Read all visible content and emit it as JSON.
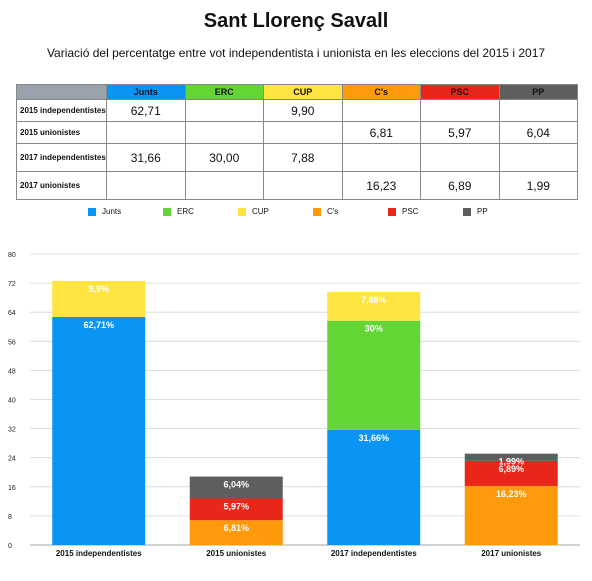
{
  "title": "Sant Llorenç Savall",
  "subtitle": "Variació del percentatge entre vot independentista i unionista en les eleccions del 2015 i 2017",
  "colors": {
    "Junts": "#0a95f5",
    "ERC": "#63d636",
    "CUP": "#fde441",
    "C's": "#fd9a0c",
    "PSC": "#e8261a",
    "PP": "#5e5e5e",
    "header_bg": "#9aa2ad"
  },
  "table": {
    "columns": [
      "Junts",
      "ERC",
      "CUP",
      "C's",
      "PSC",
      "PP"
    ],
    "rows": [
      {
        "label": "2015 independentistes",
        "cells": [
          "62,71",
          "",
          "9,90",
          "",
          "",
          ""
        ]
      },
      {
        "label": "2015 unionistes",
        "cells": [
          "",
          "",
          "",
          "6,81",
          "5,97",
          "6,04"
        ]
      },
      {
        "label": "2017 independentistes",
        "cells": [
          "31,66",
          "30,00",
          "7,88",
          "",
          "",
          ""
        ]
      },
      {
        "label": "2017 unionistes",
        "cells": [
          "",
          "",
          "",
          "16,23",
          "6,89",
          "1,99"
        ]
      }
    ]
  },
  "chart_data": {
    "type": "bar",
    "stacked": true,
    "categories": [
      "2015 independentistes",
      "2015 unionistes",
      "2017 independentistes",
      "2017 unionistes"
    ],
    "series": [
      {
        "name": "Junts",
        "values": [
          62.71,
          0,
          31.66,
          0
        ],
        "labels": [
          "62,71%",
          "",
          "31,66%",
          ""
        ]
      },
      {
        "name": "ERC",
        "values": [
          0,
          0,
          30.0,
          0
        ],
        "labels": [
          "",
          "",
          "30%",
          ""
        ]
      },
      {
        "name": "CUP",
        "values": [
          9.9,
          0,
          7.88,
          0
        ],
        "labels": [
          "9,9%",
          "",
          "7,88%",
          ""
        ]
      },
      {
        "name": "C's",
        "values": [
          0,
          6.81,
          0,
          16.23
        ],
        "labels": [
          "",
          "6,81%",
          "",
          "16,23%"
        ]
      },
      {
        "name": "PSC",
        "values": [
          0,
          5.97,
          0,
          6.89
        ],
        "labels": [
          "",
          "5,97%",
          "",
          "6,89%"
        ]
      },
      {
        "name": "PP",
        "values": [
          0,
          6.04,
          0,
          1.99
        ],
        "labels": [
          "",
          "6,04%",
          "",
          "1,99%"
        ]
      }
    ],
    "yticks": [
      0,
      8,
      16,
      24,
      32,
      40,
      48,
      56,
      64,
      72,
      80
    ],
    "ylim": [
      0,
      80
    ],
    "grid": true,
    "legend_position": "top"
  }
}
